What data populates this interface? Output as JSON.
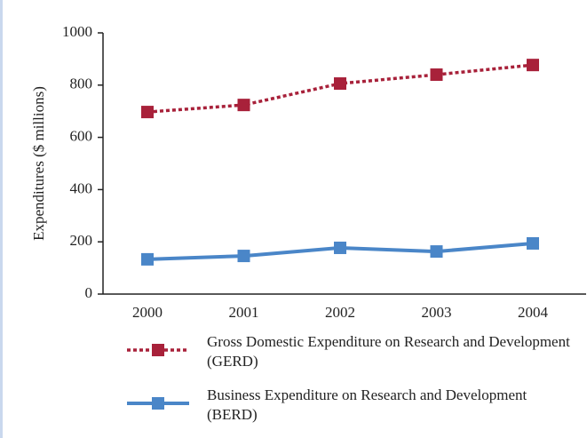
{
  "chart_data": {
    "type": "line",
    "ylabel": "Expenditures ($ millions)",
    "categories": [
      "2000",
      "2001",
      "2002",
      "2003",
      "2004"
    ],
    "series": [
      {
        "name": "Gross Domestic Expenditure on Research and Development (GERD)",
        "color": "#a8213a",
        "style": "dotted",
        "values": [
          697,
          724,
          806,
          840,
          877
        ]
      },
      {
        "name": "Business Expenditure on Research and Development (BERD)",
        "color": "#4a86c8",
        "style": "solid",
        "values": [
          133,
          146,
          177,
          163,
          194
        ]
      }
    ],
    "ylim": [
      0,
      1000
    ],
    "yticks": [
      0,
      200,
      400,
      600,
      800,
      1000
    ],
    "grid": false
  }
}
